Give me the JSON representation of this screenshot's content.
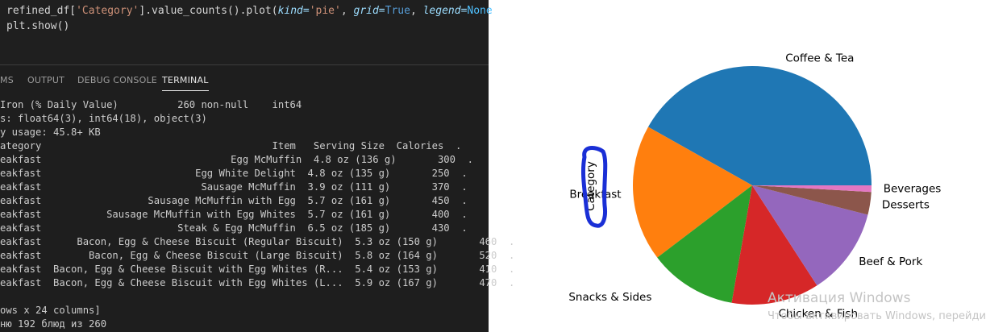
{
  "editor": {
    "code_lines": [
      {
        "plain_before": "refined_df[",
        "str": "'Category'",
        "plain_mid": "].value_counts().plot(",
        "kw1": "kind=",
        "str2": "'pie'",
        "sep1": ", ",
        "kw2": "grid=",
        "bool": "True",
        "sep2": ", ",
        "kw3": "legend=",
        "const": "None"
      },
      {
        "text": "plt.show()"
      }
    ]
  },
  "panel": {
    "tabs": [
      "MS",
      "OUTPUT",
      "DEBUG CONSOLE",
      "TERMINAL"
    ],
    "active_tab": "TERMINAL"
  },
  "terminal": {
    "lines": [
      "Iron (% Daily Value)          260 non-null    int64",
      "s: float64(3), int64(18), object(3)",
      "y usage: 45.8+ KB",
      "ategory                                       Item   Serving Size  Calories  .",
      "eakfast                                Egg McMuffin  4.8 oz (136 g)       300  .",
      "eakfast                          Egg White Delight  4.8 oz (135 g)       250  .",
      "eakfast                           Sausage McMuffin  3.9 oz (111 g)       370  .",
      "eakfast                  Sausage McMuffin with Egg  5.7 oz (161 g)       450  .",
      "eakfast           Sausage McMuffin with Egg Whites  5.7 oz (161 g)       400  .",
      "eakfast                       Steak & Egg McMuffin  6.5 oz (185 g)       430  .",
      "eakfast      Bacon, Egg & Cheese Biscuit (Regular Biscuit)  5.3 oz (150 g)       460  .",
      "eakfast        Bacon, Egg & Cheese Biscuit (Large Biscuit)  5.8 oz (164 g)       520  .",
      "eakfast  Bacon, Egg & Cheese Biscuit with Egg Whites (R...  5.4 oz (153 g)       410  .",
      "eakfast  Bacon, Egg & Cheese Biscuit with Egg Whites (L...  5.9 oz (167 g)       470  .",
      "",
      "ows x 24 columns]",
      "ню 192 блюд из 260"
    ]
  },
  "chart_data": {
    "type": "pie",
    "ylabel": "Category",
    "categories": [
      "Coffee & Tea",
      "Breakfast",
      "Chicken & Fish",
      "Beef & Pork",
      "Desserts",
      "Beverages",
      "Snacks & Sides"
    ],
    "slices": [
      {
        "label": "Coffee & Tea",
        "value": 95,
        "color": "#1f77b4"
      },
      {
        "label": "Breakfast",
        "value": 42,
        "color": "#ff7f0e"
      },
      {
        "label": "Snacks & Sides",
        "value": 27,
        "color": "#2ca02c"
      },
      {
        "label": "Chicken & Fish",
        "value": 27,
        "color": "#d62728"
      },
      {
        "label": "Beef & Pork",
        "value": 27,
        "color": "#9467bd"
      },
      {
        "label": "Desserts",
        "value": 7,
        "color": "#8c564b"
      },
      {
        "label": "Beverages",
        "value": 2,
        "color": "#e377c2"
      }
    ],
    "annotation": {
      "type": "hand-drawn circle",
      "color": "#1a2fd6"
    }
  },
  "watermark": {
    "line1": "Активация Windows",
    "line2": "Чтобы активировать Windows, перейди"
  }
}
